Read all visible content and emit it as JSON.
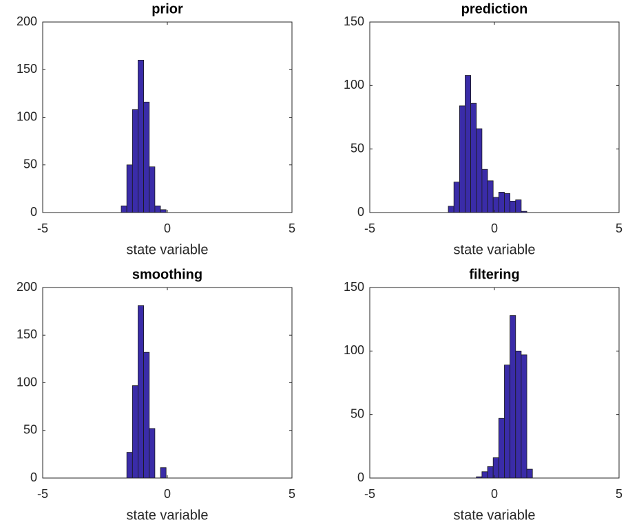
{
  "chart_data": [
    {
      "type": "histogram",
      "title": "prior",
      "xlabel": "state variable",
      "color": "#3a2ca8",
      "bins": [
        -4.1,
        -3.875,
        -3.65,
        -3.425,
        -3.2,
        -2.975,
        -2.75,
        -2.525,
        -2.3,
        -2.075,
        -1.85,
        -1.625,
        -1.4,
        -1.175,
        -0.95,
        -0.725,
        -0.5,
        -0.275,
        -0.05,
        0.175,
        0.4,
        0.625,
        0.85,
        1.075,
        1.3,
        1.525,
        1.75,
        1.975,
        2.2,
        2.425,
        2.65,
        2.875,
        3.1
      ],
      "counts": [
        0,
        0,
        0,
        0,
        0,
        0,
        0,
        0,
        0,
        0,
        7,
        50,
        108,
        160,
        116,
        48,
        7,
        3,
        0,
        0,
        0,
        0,
        0,
        0,
        0,
        0,
        0,
        0,
        0,
        0,
        0,
        0
      ],
      "xlim": [
        -5,
        5
      ],
      "ylim": [
        0,
        200
      ],
      "xticks": [
        -5,
        0,
        5
      ],
      "yticks": [
        0,
        50,
        100,
        150,
        200
      ]
    },
    {
      "type": "histogram",
      "title": "prediction",
      "xlabel": "state variable",
      "color": "#3a2ca8",
      "bins": [
        -4.1,
        -3.875,
        -3.65,
        -3.425,
        -3.2,
        -2.975,
        -2.75,
        -2.525,
        -2.3,
        -2.075,
        -1.85,
        -1.625,
        -1.4,
        -1.175,
        -0.95,
        -0.725,
        -0.5,
        -0.275,
        -0.05,
        0.175,
        0.4,
        0.625,
        0.85,
        1.075,
        1.3,
        1.525,
        1.75,
        1.975,
        2.2,
        2.425,
        2.65,
        2.875,
        3.1
      ],
      "counts": [
        0,
        0,
        0,
        0,
        0,
        0,
        0,
        0,
        0,
        0,
        5,
        24,
        84,
        108,
        86,
        66,
        34,
        25,
        12,
        16,
        15,
        9,
        10,
        1,
        0,
        0,
        0,
        0,
        0,
        0,
        0,
        0
      ],
      "xlim": [
        -5,
        5
      ],
      "ylim": [
        0,
        150
      ],
      "xticks": [
        -5,
        0,
        5
      ],
      "yticks": [
        0,
        50,
        100,
        150
      ]
    },
    {
      "type": "histogram",
      "title": "smoothing",
      "xlabel": "state variable",
      "color": "#3a2ca8",
      "bins": [
        -4.1,
        -3.875,
        -3.65,
        -3.425,
        -3.2,
        -2.975,
        -2.75,
        -2.525,
        -2.3,
        -2.075,
        -1.85,
        -1.625,
        -1.4,
        -1.175,
        -0.95,
        -0.725,
        -0.5,
        -0.275,
        -0.05,
        0.175,
        0.4,
        0.625,
        0.85,
        1.075,
        1.3,
        1.525,
        1.75,
        1.975,
        2.2,
        2.425,
        2.65,
        2.875,
        3.1
      ],
      "counts": [
        0,
        0,
        0,
        0,
        0,
        0,
        0,
        0,
        0,
        0,
        0,
        27,
        97,
        181,
        132,
        52,
        0,
        11,
        0,
        0,
        0,
        0,
        0,
        0,
        0,
        0,
        0,
        0,
        0,
        0,
        0,
        0
      ],
      "xlim": [
        -5,
        5
      ],
      "ylim": [
        0,
        200
      ],
      "xticks": [
        -5,
        0,
        5
      ],
      "yticks": [
        0,
        50,
        100,
        150,
        200
      ]
    },
    {
      "type": "histogram",
      "title": "filtering",
      "xlabel": "state variable",
      "color": "#3a2ca8",
      "bins": [
        -4.1,
        -3.875,
        -3.65,
        -3.425,
        -3.2,
        -2.975,
        -2.75,
        -2.525,
        -2.3,
        -2.075,
        -1.85,
        -1.625,
        -1.4,
        -1.175,
        -0.95,
        -0.725,
        -0.5,
        -0.275,
        -0.05,
        0.175,
        0.4,
        0.625,
        0.85,
        1.075,
        1.3,
        1.525,
        1.75,
        1.975,
        2.2,
        2.425,
        2.65,
        2.875,
        3.1
      ],
      "counts": [
        0,
        0,
        0,
        0,
        0,
        0,
        0,
        0,
        0,
        0,
        0,
        0,
        0,
        0,
        0,
        1,
        5,
        9,
        16,
        47,
        89,
        128,
        100,
        97,
        7,
        0,
        0,
        0,
        0,
        0,
        0,
        0
      ],
      "xlim": [
        -5,
        5
      ],
      "ylim": [
        0,
        150
      ],
      "xticks": [
        -5,
        0,
        5
      ],
      "yticks": [
        0,
        50,
        100,
        150
      ]
    }
  ]
}
